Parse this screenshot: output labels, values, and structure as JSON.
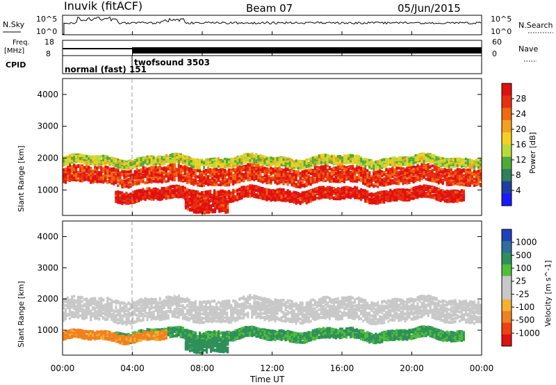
{
  "header": {
    "station": "Inuvik (fitACF)",
    "beam": "Beam 07",
    "date": "05/Jun/2015"
  },
  "top_panels": {
    "nsky": {
      "label": "N.Sky",
      "tick_top": "10^5",
      "tick_bottom": "10^0",
      "right_tick_top": "10^5",
      "right_tick_bottom": "10^0",
      "right_label": "N.Search"
    },
    "freq": {
      "label_line1": "Freq.",
      "label_line2": "[MHz]",
      "tick_top": "18",
      "tick_bottom": "8",
      "right_tick_top": "60",
      "right_tick_bottom": "0",
      "right_label": "Nave"
    },
    "cpid": {
      "label": "CPID",
      "mode1": "normal (fast) 151",
      "mode2": "twofsound 3503"
    }
  },
  "colors": {
    "power_scale": [
      "#1a1aff",
      "#1f3fa0",
      "#2f7f5a",
      "#4faa3a",
      "#bada3a",
      "#f5d020",
      "#f5a020",
      "#f06a10",
      "#e83010",
      "#e01010"
    ],
    "velocity_scale": [
      "#e01010",
      "#f04010",
      "#f08020",
      "#f5b030",
      "#c8c8c8",
      "#c8c8c8",
      "#4fbf3a",
      "#2f8f5a",
      "#2f6fa0",
      "#2040c0"
    ],
    "ground_scatter": "#c8c8c8"
  },
  "chart_data": [
    {
      "type": "heatmap",
      "name": "power",
      "ylabel": "Slant Range [km]",
      "xlabel": "",
      "xlim": [
        "00:00",
        "24:00"
      ],
      "ylim": [
        200,
        4500
      ],
      "xticks": [
        "00:00",
        "04:00",
        "08:00",
        "12:00",
        "16:00",
        "20:00",
        "00:00"
      ],
      "yticks": [
        1000,
        2000,
        3000,
        4000
      ],
      "colorbar": {
        "label": "Power [dB]",
        "ticks": [
          4,
          8,
          12,
          16,
          20,
          24,
          28
        ],
        "range": [
          0,
          30
        ]
      },
      "bands": [
        {
          "start_h": 0.0,
          "end_h": 24.0,
          "center_km": 1450,
          "width_km": 500,
          "value": 26
        },
        {
          "start_h": 3.0,
          "end_h": 23.0,
          "center_km": 850,
          "width_km": 350,
          "value": 28
        },
        {
          "start_h": 0.0,
          "end_h": 24.0,
          "center_km": 1900,
          "width_km": 250,
          "value": 14
        },
        {
          "start_h": 7.0,
          "end_h": 9.5,
          "center_km": 550,
          "width_km": 400,
          "value": 28
        }
      ]
    },
    {
      "type": "heatmap",
      "name": "velocity",
      "ylabel": "Slant Range [km]",
      "xlabel": "Time UT",
      "xlim": [
        "00:00",
        "24:00"
      ],
      "ylim": [
        200,
        4500
      ],
      "xticks": [
        "00:00",
        "04:00",
        "08:00",
        "12:00",
        "16:00",
        "20:00",
        "00:00"
      ],
      "yticks": [
        1000,
        2000,
        3000,
        4000
      ],
      "colorbar": {
        "label": "Velocity [m s^-1]",
        "ticks": [
          1000,
          500,
          100,
          25,
          -25,
          -100,
          -500,
          -1000
        ]
      },
      "bands": [
        {
          "start_h": 0.0,
          "end_h": 24.0,
          "center_km": 1650,
          "width_km": 700,
          "value": 0
        },
        {
          "start_h": 3.0,
          "end_h": 23.0,
          "center_km": 850,
          "width_km": 300,
          "value": 120
        },
        {
          "start_h": 0.0,
          "end_h": 6.0,
          "center_km": 800,
          "width_km": 250,
          "value": -150
        },
        {
          "start_h": 7.0,
          "end_h": 9.5,
          "center_km": 550,
          "width_km": 400,
          "value": 300
        }
      ]
    }
  ]
}
